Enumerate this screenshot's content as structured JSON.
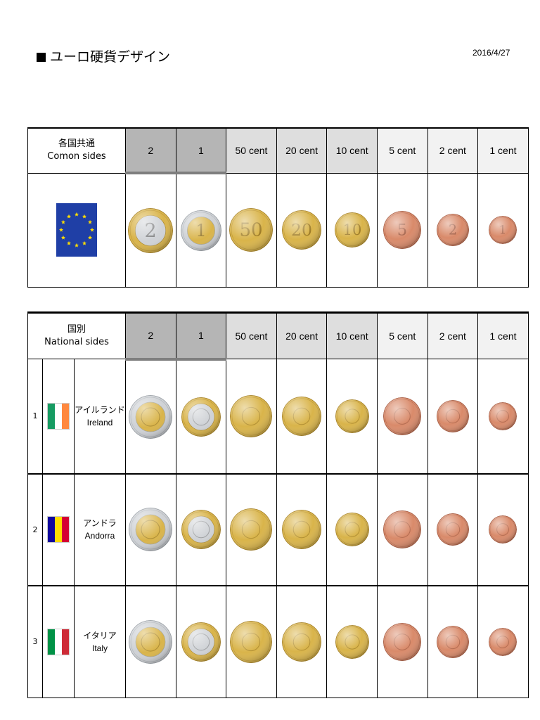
{
  "header": {
    "title": "ユーロ硬貨デザイン",
    "date": "2016/4/27"
  },
  "common": {
    "label_jp": "各国共通",
    "label_en": "Comon sides",
    "denominations": [
      "2",
      "1",
      "50 cent",
      "20 cent",
      "10 cent",
      "5 cent",
      "2 cent",
      "1 cent"
    ],
    "coin_faces": [
      "2",
      "1",
      "50",
      "20",
      "10",
      "5",
      "2",
      "1"
    ]
  },
  "national": {
    "label_jp": "国別",
    "label_en": "National  sides",
    "denominations": [
      "2",
      "1",
      "50 cent",
      "20 cent",
      "10 cent",
      "5 cent",
      "2 cent",
      "1 cent"
    ],
    "countries": [
      {
        "no": "1",
        "name_jp": "アイルランド",
        "name_en": "Ireland",
        "flag": [
          "#169b62",
          "#ffffff",
          "#ff883e"
        ]
      },
      {
        "no": "2",
        "name_jp": "アンドラ",
        "name_en": "Andorra",
        "flag": [
          "#10069f",
          "#fedd00",
          "#d50032"
        ]
      },
      {
        "no": "3",
        "name_jp": "イタリア",
        "name_en": "Italy",
        "flag": [
          "#009246",
          "#ffffff",
          "#ce2b37"
        ]
      }
    ]
  },
  "colors": {
    "header_dark": "#b5b5b5",
    "header_mid": "#dedede",
    "header_light": "#f2f2f2",
    "gold": "#d9b44a",
    "silver": "#cfd2d6",
    "copper": "#d98a6a",
    "eu_blue": "#1f3fa6"
  }
}
